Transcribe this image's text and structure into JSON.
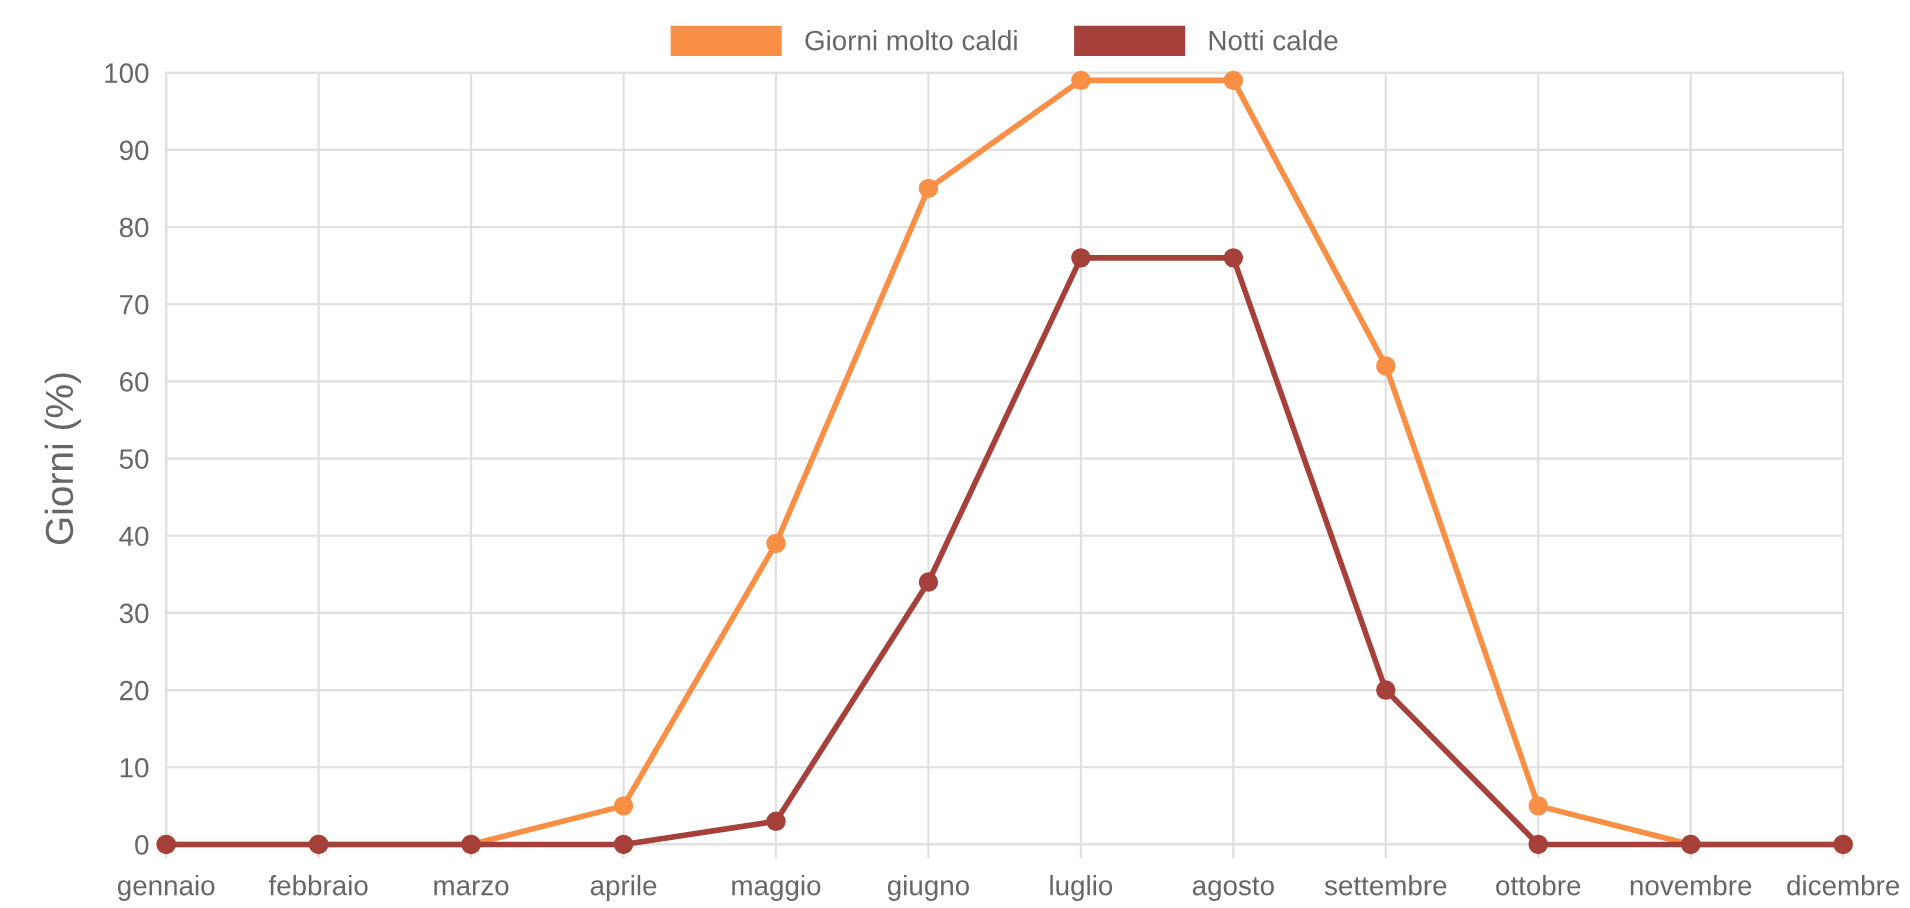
{
  "chart_data": {
    "type": "line",
    "ylabel": "Giorni (%)",
    "categories": [
      "gennaio",
      "febbraio",
      "marzo",
      "aprile",
      "maggio",
      "giugno",
      "luglio",
      "agosto",
      "settembre",
      "ottobre",
      "novembre",
      "dicembre"
    ],
    "series": [
      {
        "name": "Giorni molto caldi",
        "color": "#f98f45",
        "values": [
          0,
          0,
          0,
          5,
          39,
          85,
          99,
          99,
          62,
          5,
          0,
          0
        ]
      },
      {
        "name": "Notti calde",
        "color": "#a5403a",
        "values": [
          0,
          0,
          0,
          0,
          3,
          34,
          76,
          76,
          20,
          0,
          0,
          0
        ]
      }
    ],
    "ylim": [
      0,
      100
    ],
    "yticks": [
      0,
      10,
      20,
      30,
      40,
      50,
      60,
      70,
      80,
      90,
      100
    ],
    "grid": true,
    "legend": "top",
    "marker": "circle",
    "line_style": "solid"
  }
}
